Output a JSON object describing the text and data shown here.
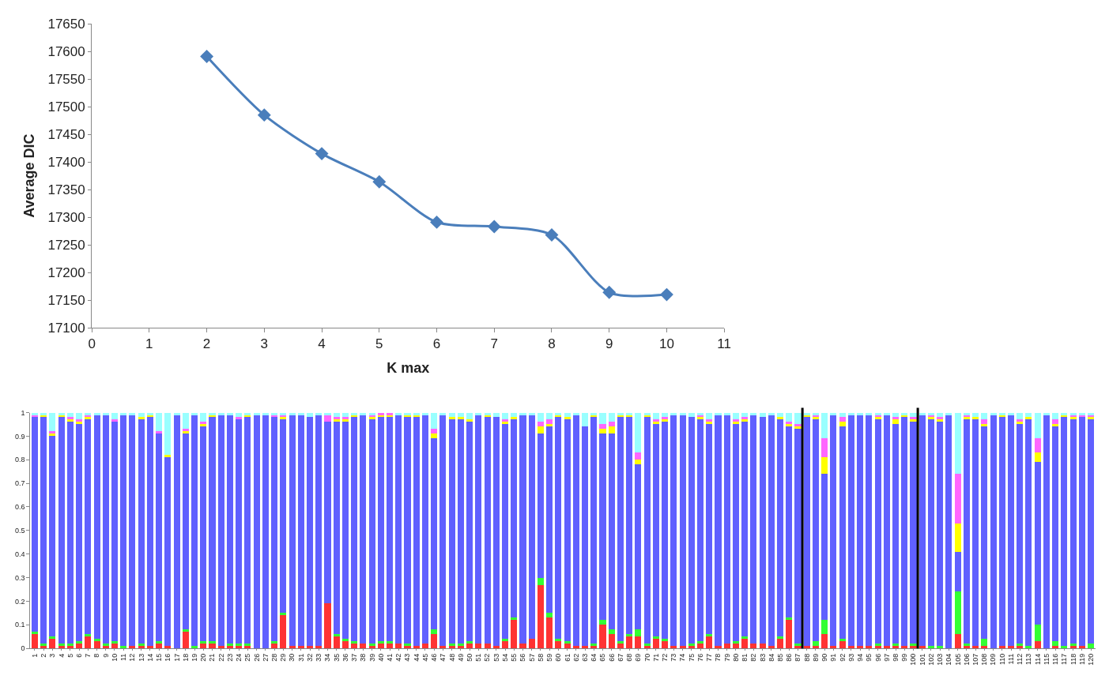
{
  "chart_data": [
    {
      "type": "line",
      "xlabel": "K max",
      "ylabel": "Average DIC",
      "x": [
        2,
        3,
        4,
        5,
        6,
        7,
        8,
        9,
        10
      ],
      "series": [
        {
          "color": "#4a7ebb",
          "values": [
            17591,
            17485,
            17415,
            17364,
            17291,
            17283,
            17268,
            17164,
            17160
          ]
        }
      ],
      "marker": "diamond",
      "line_style": "solid",
      "xlim": [
        0,
        11
      ],
      "xticks": [
        0,
        1,
        2,
        3,
        4,
        5,
        6,
        7,
        8,
        9,
        10,
        11
      ],
      "ylim": [
        17100,
        17650
      ],
      "yticks": [
        17100,
        17150,
        17200,
        17250,
        17300,
        17350,
        17400,
        17450,
        17500,
        17550,
        17600,
        17650
      ]
    },
    {
      "type": "bar",
      "stacked": true,
      "ylim": [
        0,
        1
      ],
      "yticks": [
        0,
        0.1,
        0.2,
        0.3,
        0.4,
        0.5,
        0.6,
        0.7,
        0.8,
        0.9,
        1
      ],
      "xlim": [
        0.5,
        120.5
      ],
      "x": [
        1,
        2,
        3,
        4,
        5,
        6,
        7,
        8,
        9,
        10,
        11,
        12,
        13,
        14,
        15,
        16,
        17,
        18,
        19,
        20,
        21,
        22,
        23,
        24,
        25,
        26,
        27,
        28,
        29,
        30,
        31,
        32,
        33,
        34,
        35,
        36,
        37,
        38,
        39,
        40,
        41,
        42,
        43,
        44,
        45,
        46,
        47,
        48,
        49,
        50,
        51,
        52,
        53,
        54,
        55,
        56,
        57,
        58,
        59,
        60,
        61,
        62,
        63,
        64,
        65,
        66,
        67,
        68,
        69,
        70,
        71,
        72,
        73,
        74,
        75,
        76,
        77,
        78,
        79,
        80,
        81,
        82,
        83,
        84,
        85,
        86,
        87,
        88,
        89,
        90,
        91,
        92,
        93,
        94,
        95,
        96,
        97,
        98,
        99,
        100,
        101,
        102,
        103,
        104,
        105,
        106,
        107,
        108,
        109,
        110,
        111,
        112,
        113,
        114,
        115,
        116,
        117,
        118,
        119,
        120
      ],
      "xticks": [
        1,
        2,
        3,
        4,
        5,
        6,
        7,
        8,
        9,
        10,
        11,
        12,
        13,
        14,
        15,
        16,
        17,
        18,
        19,
        20,
        21,
        22,
        23,
        24,
        25,
        26,
        27,
        28,
        29,
        30,
        31,
        32,
        33,
        34,
        35,
        36,
        37,
        38,
        39,
        40,
        41,
        42,
        43,
        44,
        45,
        46,
        47,
        48,
        49,
        50,
        51,
        52,
        53,
        54,
        55,
        56,
        57,
        58,
        59,
        60,
        61,
        62,
        63,
        64,
        65,
        66,
        67,
        68,
        69,
        70,
        71,
        72,
        73,
        74,
        75,
        76,
        77,
        78,
        79,
        80,
        81,
        82,
        83,
        84,
        85,
        86,
        87,
        88,
        89,
        90,
        91,
        92,
        93,
        94,
        95,
        96,
        97,
        98,
        99,
        100,
        101,
        102,
        103,
        104,
        105,
        106,
        107,
        108,
        109,
        110,
        111,
        112,
        113,
        114,
        115,
        116,
        117,
        118,
        119,
        120
      ],
      "ref_lines": [
        {
          "axis": "x",
          "value": 87.5,
          "color": "#000000"
        },
        {
          "axis": "x",
          "value": 100.5,
          "color": "#000000"
        }
      ],
      "series": [
        {
          "color": "#ff3333",
          "values": [
            0.06,
            0.01,
            0.04,
            0.01,
            0.01,
            0.02,
            0.05,
            0.03,
            0.01,
            0.02,
            0,
            0.01,
            0.01,
            0.01,
            0.02,
            0.01,
            0,
            0.07,
            0,
            0.02,
            0.02,
            0.01,
            0.01,
            0.01,
            0.01,
            0,
            0,
            0.02,
            0.14,
            0.01,
            0.01,
            0.01,
            0.01,
            0.19,
            0.05,
            0.03,
            0.02,
            0.02,
            0.01,
            0.02,
            0.02,
            0.02,
            0.01,
            0.01,
            0.02,
            0.06,
            0.01,
            0.01,
            0.01,
            0.02,
            0.02,
            0.02,
            0.01,
            0.03,
            0.12,
            0.02,
            0.04,
            0.27,
            0.13,
            0.03,
            0.02,
            0.01,
            0.01,
            0.01,
            0.1,
            0.06,
            0.02,
            0.05,
            0.05,
            0.01,
            0.04,
            0.03,
            0.01,
            0.01,
            0.01,
            0.02,
            0.05,
            0.01,
            0.02,
            0.02,
            0.04,
            0.02,
            0.02,
            0.01,
            0.04,
            0.12,
            0.01,
            0.01,
            0.01,
            0.06,
            0.01,
            0.03,
            0.01,
            0.01,
            0.01,
            0.01,
            0.01,
            0.01,
            0.01,
            0.01,
            0.01,
            0,
            0,
            0,
            0.06,
            0.01,
            0.01,
            0.01,
            0,
            0.01,
            0.01,
            0.01,
            0,
            0.03,
            0,
            0.01,
            0,
            0.01,
            0.01,
            0
          ]
        },
        {
          "color": "#33ff33",
          "values": [
            0.01,
            0.01,
            0.01,
            0.01,
            0.01,
            0.01,
            0.01,
            0.01,
            0.01,
            0.01,
            0.01,
            0,
            0.01,
            0,
            0.01,
            0,
            0,
            0.01,
            0.01,
            0.01,
            0.01,
            0,
            0.01,
            0.01,
            0.01,
            0,
            0,
            0.01,
            0.01,
            0,
            0,
            0,
            0,
            0,
            0.01,
            0.01,
            0.01,
            0,
            0.01,
            0.01,
            0.01,
            0,
            0.01,
            0,
            0,
            0.02,
            0,
            0.01,
            0.01,
            0.01,
            0,
            0,
            0,
            0.01,
            0.01,
            0,
            0,
            0.03,
            0.02,
            0.01,
            0.01,
            0,
            0,
            0.01,
            0.02,
            0.02,
            0.01,
            0.01,
            0.03,
            0.01,
            0.01,
            0.01,
            0,
            0,
            0.01,
            0.01,
            0.01,
            0,
            0,
            0.01,
            0.01,
            0,
            0,
            0,
            0.01,
            0.01,
            0.01,
            0,
            0.02,
            0.06,
            0,
            0.01,
            0,
            0,
            0,
            0.01,
            0,
            0.01,
            0,
            0.01,
            0,
            0.01,
            0.01,
            0,
            0.18,
            0.01,
            0,
            0.03,
            0,
            0,
            0,
            0.01,
            0.01,
            0.07,
            0,
            0.02,
            0.01,
            0.01,
            0,
            0.02
          ]
        },
        {
          "color": "#6060ff",
          "values": [
            0.91,
            0.96,
            0.85,
            0.96,
            0.94,
            0.92,
            0.91,
            0.95,
            0.97,
            0.93,
            0.98,
            0.98,
            0.95,
            0.97,
            0.88,
            0.8,
            0.99,
            0.83,
            0.98,
            0.91,
            0.95,
            0.98,
            0.97,
            0.95,
            0.96,
            0.99,
            0.99,
            0.95,
            0.82,
            0.98,
            0.98,
            0.97,
            0.98,
            0.77,
            0.9,
            0.92,
            0.95,
            0.97,
            0.95,
            0.95,
            0.95,
            0.97,
            0.96,
            0.97,
            0.97,
            0.81,
            0.98,
            0.95,
            0.95,
            0.93,
            0.97,
            0.96,
            0.97,
            0.91,
            0.84,
            0.97,
            0.95,
            0.61,
            0.79,
            0.94,
            0.94,
            0.98,
            0.93,
            0.96,
            0.79,
            0.83,
            0.95,
            0.92,
            0.7,
            0.96,
            0.9,
            0.92,
            0.98,
            0.98,
            0.96,
            0.94,
            0.89,
            0.98,
            0.97,
            0.92,
            0.91,
            0.97,
            0.96,
            0.98,
            0.92,
            0.81,
            0.91,
            0.97,
            0.94,
            0.62,
            0.98,
            0.9,
            0.98,
            0.98,
            0.98,
            0.95,
            0.98,
            0.93,
            0.97,
            0.94,
            0.98,
            0.96,
            0.95,
            0.99,
            0.17,
            0.95,
            0.96,
            0.9,
            0.99,
            0.97,
            0.98,
            0.93,
            0.96,
            0.69,
            0.99,
            0.91,
            0.97,
            0.95,
            0.97,
            0.95
          ]
        },
        {
          "color": "#ffff00",
          "values": [
            0,
            0.01,
            0.01,
            0.01,
            0.01,
            0.01,
            0.01,
            0,
            0,
            0,
            0,
            0,
            0.01,
            0.01,
            0,
            0.01,
            0,
            0.01,
            0,
            0.01,
            0.01,
            0,
            0,
            0,
            0.01,
            0,
            0,
            0,
            0.01,
            0,
            0,
            0,
            0,
            0,
            0.01,
            0.01,
            0.01,
            0,
            0.01,
            0.01,
            0.01,
            0,
            0.01,
            0.01,
            0,
            0.02,
            0,
            0.01,
            0.01,
            0.01,
            0,
            0.01,
            0,
            0.01,
            0.01,
            0,
            0,
            0.03,
            0.01,
            0.01,
            0.01,
            0,
            0,
            0.01,
            0.02,
            0.03,
            0.01,
            0.01,
            0.02,
            0.01,
            0.01,
            0.01,
            0,
            0,
            0,
            0.01,
            0.01,
            0,
            0,
            0.01,
            0.01,
            0,
            0,
            0,
            0.01,
            0.01,
            0.01,
            0.01,
            0.01,
            0.07,
            0,
            0.02,
            0,
            0,
            0,
            0.01,
            0,
            0.02,
            0.01,
            0.01,
            0,
            0.01,
            0.01,
            0,
            0.12,
            0.01,
            0.01,
            0.01,
            0,
            0.01,
            0,
            0.01,
            0.01,
            0.04,
            0,
            0.01,
            0.01,
            0.01,
            0,
            0.01
          ]
        },
        {
          "color": "#ff66ff",
          "values": [
            0.01,
            0,
            0.01,
            0,
            0.01,
            0.01,
            0.01,
            0,
            0,
            0.01,
            0,
            0,
            0,
            0,
            0.01,
            0,
            0,
            0.01,
            0,
            0.01,
            0,
            0,
            0,
            0.01,
            0,
            0,
            0,
            0.01,
            0.01,
            0,
            0,
            0,
            0,
            0.03,
            0.01,
            0.01,
            0,
            0,
            0.01,
            0.01,
            0.01,
            0,
            0,
            0,
            0,
            0.02,
            0,
            0,
            0,
            0,
            0,
            0,
            0,
            0.01,
            0,
            0,
            0,
            0.02,
            0.02,
            0,
            0,
            0,
            0,
            0,
            0.02,
            0.02,
            0,
            0,
            0.03,
            0,
            0.01,
            0.01,
            0,
            0,
            0,
            0.01,
            0.01,
            0,
            0,
            0.01,
            0.01,
            0,
            0,
            0,
            0,
            0.01,
            0.01,
            0,
            0.01,
            0.08,
            0,
            0.02,
            0,
            0,
            0,
            0.01,
            0,
            0.01,
            0,
            0.01,
            0,
            0.01,
            0.01,
            0,
            0.21,
            0.01,
            0,
            0.02,
            0,
            0,
            0,
            0.01,
            0,
            0.06,
            0,
            0.02,
            0,
            0.01,
            0.01,
            0.01
          ]
        },
        {
          "color": "#99ffff",
          "values": [
            0.01,
            0.01,
            0.08,
            0.01,
            0.02,
            0.03,
            0.01,
            0.01,
            0.01,
            0.03,
            0.01,
            0.01,
            0.02,
            0.01,
            0.08,
            0.18,
            0.01,
            0.07,
            0.01,
            0.04,
            0.01,
            0.01,
            0.01,
            0.02,
            0.01,
            0.01,
            0.01,
            0.01,
            0.01,
            0.01,
            0.01,
            0.02,
            0.01,
            0.01,
            0.02,
            0.02,
            0.01,
            0.01,
            0.01,
            0,
            0,
            0.01,
            0.01,
            0.01,
            0.01,
            0.07,
            0.01,
            0.02,
            0.02,
            0.03,
            0.01,
            0.01,
            0.02,
            0.03,
            0.02,
            0.01,
            0.01,
            0.04,
            0.03,
            0.01,
            0.02,
            0.01,
            0.06,
            0.01,
            0.05,
            0.04,
            0.01,
            0.01,
            0.17,
            0.01,
            0.03,
            0.02,
            0.01,
            0.01,
            0.02,
            0.01,
            0.03,
            0.01,
            0.01,
            0.03,
            0.02,
            0.01,
            0.02,
            0.01,
            0.02,
            0.04,
            0.05,
            0.01,
            0.01,
            0.11,
            0.01,
            0.02,
            0.01,
            0.01,
            0.01,
            0.01,
            0.01,
            0.02,
            0.01,
            0.02,
            0.01,
            0.01,
            0.02,
            0.01,
            0.26,
            0.01,
            0.02,
            0.03,
            0.01,
            0.01,
            0.01,
            0.03,
            0.02,
            0.11,
            0.01,
            0.03,
            0.01,
            0.01,
            0.01,
            0.01
          ]
        }
      ]
    }
  ]
}
